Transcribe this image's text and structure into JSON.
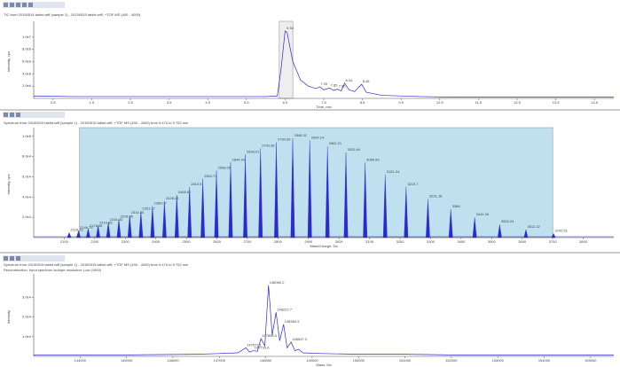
{
  "chart_data": [
    {
      "type": "line",
      "title": "TIC from 20150515 tablet.wiff (sample 1) - 20150515 tablet.wiff, +TOF MS (400 - 4000)",
      "xlabel": "Time, min",
      "ylabel": "Intensity, cps",
      "color": "#2a2ad0",
      "highlight": [
        6.35,
        6.7
      ],
      "xlim": [
        0,
        15
      ],
      "xticks": [
        0.5,
        1.5,
        2.5,
        3.5,
        4.5,
        5.5,
        6.5,
        7.5,
        8.5,
        9.5,
        10.5,
        11.5,
        12.5,
        13.5,
        14.5
      ],
      "ylim": [
        0,
        12000000
      ],
      "yticks": [
        {
          "value": 2000000,
          "label": "2.0e6"
        },
        {
          "value": 4000000,
          "label": "4.0e6"
        },
        {
          "value": 6000000,
          "label": "6.0e6"
        },
        {
          "value": 8000000,
          "label": "8.0e6"
        },
        {
          "value": 10000000,
          "label": "1.0e7"
        }
      ],
      "x": [
        0,
        1,
        2,
        3,
        4,
        5,
        6,
        6.3,
        6.4,
        6.5,
        6.55,
        6.7,
        6.9,
        7.1,
        7.3,
        7.4,
        7.5,
        7.65,
        7.75,
        7.86,
        7.95,
        8.04,
        8.15,
        8.3,
        8.4,
        8.48,
        8.6,
        9,
        10,
        11,
        12,
        13,
        14,
        15
      ],
      "values": [
        400000,
        300000,
        300000,
        300000,
        300000,
        300000,
        300000,
        400000,
        5000000,
        11000000,
        10800000,
        6000000,
        3000000,
        2000000,
        1600000,
        1900000,
        1400000,
        1700000,
        1300000,
        1500000,
        1200000,
        2500000,
        1400000,
        1100000,
        1800000,
        2300000,
        1000000,
        500000,
        300000,
        200000,
        200000,
        200000,
        200000,
        200000
      ],
      "annotations": [
        {
          "x": 6.52,
          "y": 11000000
        },
        {
          "x": 7.39,
          "y": 1900000
        },
        {
          "x": 7.65,
          "y": 1700000
        },
        {
          "x": 7.86,
          "y": 1500000
        },
        {
          "x": 8.04,
          "y": 2500000
        },
        {
          "x": 8.48,
          "y": 2300000
        }
      ]
    },
    {
      "type": "spectrum",
      "title": "Spectrum from 20150515 tablet.wiff (sample 1) - 20150515 tablet.wiff, +TOF MS (400 - 4000) from 9.474 to 9.752 min",
      "xlabel": "Mass/Charge, Da",
      "ylabel": "Intensity, cps",
      "color": "#2a2ad0",
      "highlight": [
        2150,
        3700
      ],
      "xlim": [
        2000,
        3900
      ],
      "xticks": [
        2100,
        2200,
        2300,
        2400,
        2500,
        2600,
        2700,
        2800,
        2900,
        3000,
        3100,
        3200,
        3300,
        3400,
        3500,
        3600,
        3700,
        3800
      ],
      "ylim": [
        0,
        105000
      ],
      "yticks": [
        {
          "value": 20000,
          "label": "2.0e4"
        },
        {
          "value": 40000,
          "label": "4.0e4"
        },
        {
          "value": 60000,
          "label": "6.0e4"
        },
        {
          "value": 80000,
          "label": "8.0e4"
        },
        {
          "value": 100000,
          "label": "1.0e5"
        }
      ],
      "x": [
        2116.15,
        2146.79,
        2178.36,
        2210.86,
        2244.33,
        2278.85,
        2314.45,
        2351.17,
        2389.07,
        2428.22,
        2468.67,
        2510.5,
        2553.77,
        2598.55,
        2644.94,
        2693.01,
        2742.86,
        2794.59,
        2848.31,
        2904.14,
        2962.21,
        3022.64,
        3085.59,
        3151.24,
        3219.7,
        3291.18,
        3366,
        3444.26,
        3526.24,
        3612.22,
        3702.51
      ],
      "values": [
        5000,
        7000,
        9000,
        12000,
        15000,
        18000,
        22000,
        26000,
        31000,
        36000,
        42000,
        50000,
        58000,
        66000,
        74000,
        82000,
        88000,
        94000,
        98000,
        96000,
        90000,
        84000,
        74000,
        62000,
        50000,
        38000,
        28000,
        20000,
        13000,
        8000,
        4000
      ]
    },
    {
      "type": "line",
      "title": "Spectrum from 20150515 tablet.wiff (sample 1) - 20150515 tablet.wiff, +TOF MS (400 - 4000) from 9.474 to 9.752 min",
      "subtitle": "Reconstruction, Input spectrum isotope resolution: Low (1000)",
      "xlabel": "Mass, Da",
      "ylabel": "Intensity",
      "color": "#2a2ad0",
      "xlim": [
        143000,
        155500
      ],
      "xticks": [
        144000,
        145000,
        146000,
        147000,
        148000,
        149000,
        150000,
        151000,
        152000,
        153000,
        154000,
        155000
      ],
      "ylim": [
        0,
        40000
      ],
      "yticks": [
        {
          "value": 10000,
          "label": "1.0e4"
        },
        {
          "value": 20000,
          "label": "2.0e4"
        },
        {
          "value": 30000,
          "label": "3.0e4"
        }
      ],
      "x": [
        143000,
        145000,
        146500,
        147000,
        147400,
        147572,
        147650,
        147735,
        147820,
        147898,
        147980,
        148060,
        148140,
        148222,
        148300,
        148385,
        148460,
        148547,
        148630,
        148710,
        148800,
        149200,
        150000,
        151000,
        152000,
        153000,
        154000,
        155500
      ],
      "values": [
        720,
        720,
        1080,
        1440,
        1800,
        4320,
        2160,
        2880,
        2520,
        9000,
        5400,
        36000,
        10800,
        22320,
        7920,
        16200,
        4320,
        7200,
        2880,
        3600,
        1800,
        1440,
        1080,
        1080,
        720,
        720,
        720,
        720
      ],
      "annotations": [
        {
          "x": 147572.1,
          "y": 4320
        },
        {
          "x": 147735.6,
          "y": 2880
        },
        {
          "x": 147898.4,
          "y": 9000
        },
        {
          "x": 148060.2,
          "y": 36000
        },
        {
          "x": 148222.7,
          "y": 22320
        },
        {
          "x": 148384.9,
          "y": 16200
        },
        {
          "x": 148547.3,
          "y": 7200
        }
      ]
    }
  ]
}
